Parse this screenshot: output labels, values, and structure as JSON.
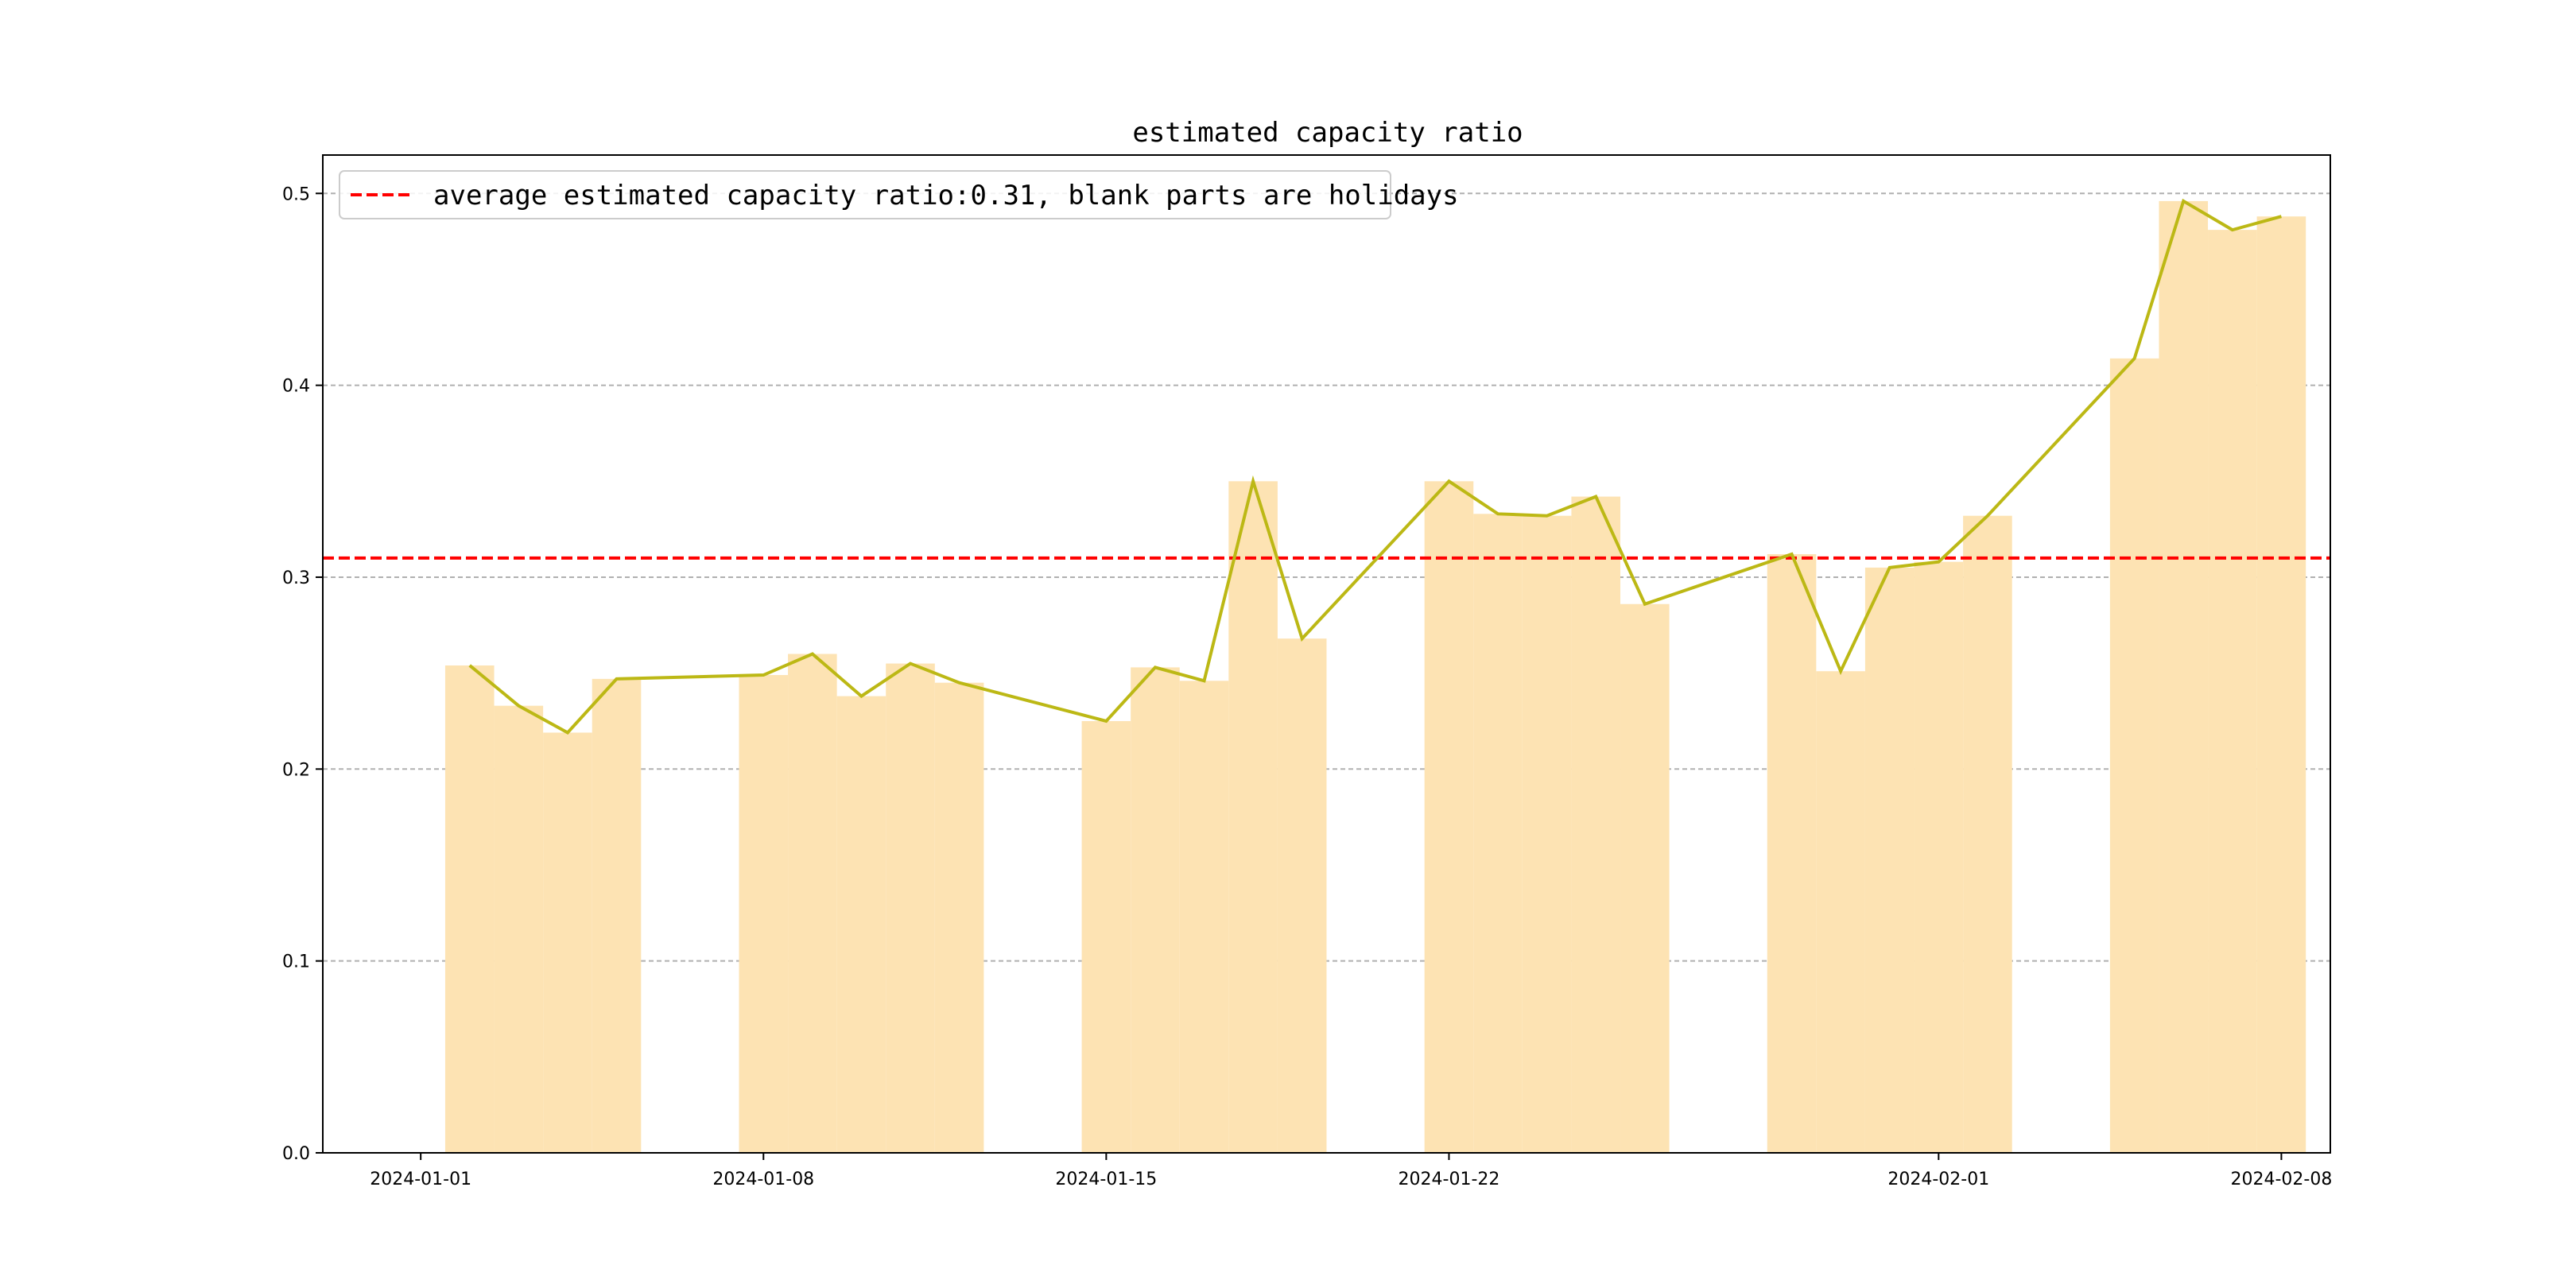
{
  "chart_data": {
    "type": "bar",
    "title": "estimated capacity ratio",
    "xlabel": "",
    "ylabel": "",
    "xlim": [
      "2023-12-30",
      "2024-02-09"
    ],
    "ylim": [
      0,
      0.52
    ],
    "grid": "y-dashed",
    "legend_position": "upper-left",
    "legend_label": "average estimated capacity ratio:0.31, blank parts are holidays",
    "average": 0.31,
    "x_ticks": [
      "2024-01-01",
      "2024-01-08",
      "2024-01-15",
      "2024-01-22",
      "2024-02-01",
      "2024-02-08"
    ],
    "y_ticks": [
      0.0,
      0.1,
      0.2,
      0.3,
      0.4,
      0.5
    ],
    "y_tick_labels": [
      "0.0",
      "0.1",
      "0.2",
      "0.3",
      "0.4",
      "0.5"
    ],
    "x": [
      "2024-01-02",
      "2024-01-03",
      "2024-01-04",
      "2024-01-05",
      "2024-01-08",
      "2024-01-09",
      "2024-01-10",
      "2024-01-11",
      "2024-01-12",
      "2024-01-15",
      "2024-01-16",
      "2024-01-17",
      "2024-01-18",
      "2024-01-19",
      "2024-01-22",
      "2024-01-23",
      "2024-01-24",
      "2024-01-25",
      "2024-01-26",
      "2024-01-29",
      "2024-01-30",
      "2024-01-31",
      "2024-02-01",
      "2024-02-02",
      "2024-02-05",
      "2024-02-06",
      "2024-02-07",
      "2024-02-08"
    ],
    "values": [
      0.254,
      0.233,
      0.219,
      0.247,
      0.249,
      0.26,
      0.238,
      0.255,
      0.245,
      0.225,
      0.253,
      0.246,
      0.35,
      0.268,
      0.35,
      0.333,
      0.332,
      0.342,
      0.286,
      0.312,
      0.251,
      0.305,
      0.308,
      0.332,
      0.414,
      0.496,
      0.481,
      0.488
    ],
    "colors": {
      "bar": "#fde3b3",
      "line": "#bcb815",
      "average": "#ff0000",
      "grid": "#b0b0b0",
      "axis": "#000000"
    }
  }
}
